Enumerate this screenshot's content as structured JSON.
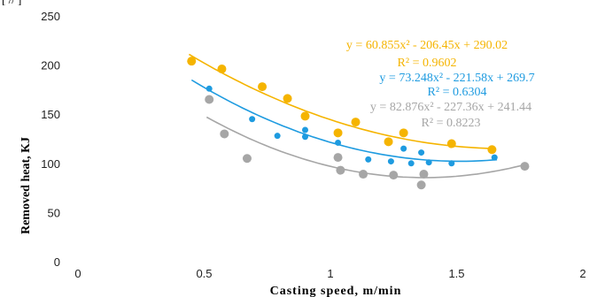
{
  "header_fragment": "[ // ]",
  "chart_data": {
    "type": "scatter",
    "xlabel": "Casting speed,  m/min",
    "ylabel": "Removed heat, KJ",
    "xlim": [
      0,
      2
    ],
    "ylim": [
      0,
      250
    ],
    "xticks": [
      0,
      0.5,
      1,
      1.5,
      2
    ],
    "xtick_labels": [
      "0",
      "0.5",
      "1",
      "1.5",
      "2"
    ],
    "yticks": [
      0,
      50,
      100,
      150,
      200,
      250
    ],
    "ytick_labels": [
      "0",
      "50",
      "100",
      "150",
      "200",
      "250"
    ],
    "grid": false,
    "series": [
      {
        "color": "#F5B400",
        "points": [
          [
            0.45,
            204
          ],
          [
            0.57,
            196
          ],
          [
            0.73,
            178
          ],
          [
            0.83,
            166
          ],
          [
            0.9,
            148
          ],
          [
            1.03,
            131
          ],
          [
            1.1,
            142
          ],
          [
            1.23,
            122
          ],
          [
            1.29,
            131
          ],
          [
            1.48,
            120
          ],
          [
            1.64,
            114
          ]
        ],
        "trendline": {
          "a": 60.855,
          "b": -206.45,
          "c": 290.02,
          "range": [
            0.44,
            1.65
          ]
        },
        "equation": "y = 60.855x² - 206.45x + 290.02",
        "r2": "R² = 0.9602"
      },
      {
        "color": "#1E9BE0",
        "points": [
          [
            0.52,
            176
          ],
          [
            0.69,
            145
          ],
          [
            0.79,
            128
          ],
          [
            0.9,
            134
          ],
          [
            0.9,
            127
          ],
          [
            1.03,
            121
          ],
          [
            1.15,
            104
          ],
          [
            1.24,
            102
          ],
          [
            1.29,
            115
          ],
          [
            1.32,
            100
          ],
          [
            1.36,
            111
          ],
          [
            1.39,
            101
          ],
          [
            1.48,
            100
          ],
          [
            1.65,
            106
          ]
        ],
        "trendline": {
          "a": 73.248,
          "b": -221.58,
          "c": 269.7,
          "range": [
            0.45,
            1.66
          ]
        },
        "equation": "y = 73.248x² - 221.58x + 269.7",
        "r2": "R² = 0.6304"
      },
      {
        "color": "#A6A6A6",
        "points": [
          [
            0.52,
            165
          ],
          [
            0.58,
            130
          ],
          [
            0.67,
            105
          ],
          [
            1.03,
            106
          ],
          [
            1.04,
            93
          ],
          [
            1.13,
            89
          ],
          [
            1.25,
            88
          ],
          [
            1.36,
            78
          ],
          [
            1.37,
            89
          ],
          [
            1.77,
            97
          ]
        ],
        "trendline": {
          "a": 82.876,
          "b": -227.36,
          "c": 241.44,
          "range": [
            0.51,
            1.77
          ]
        },
        "equation": "y = 82.876x² - 227.36x + 241.44",
        "r2": "R² = 0.8223"
      }
    ]
  }
}
